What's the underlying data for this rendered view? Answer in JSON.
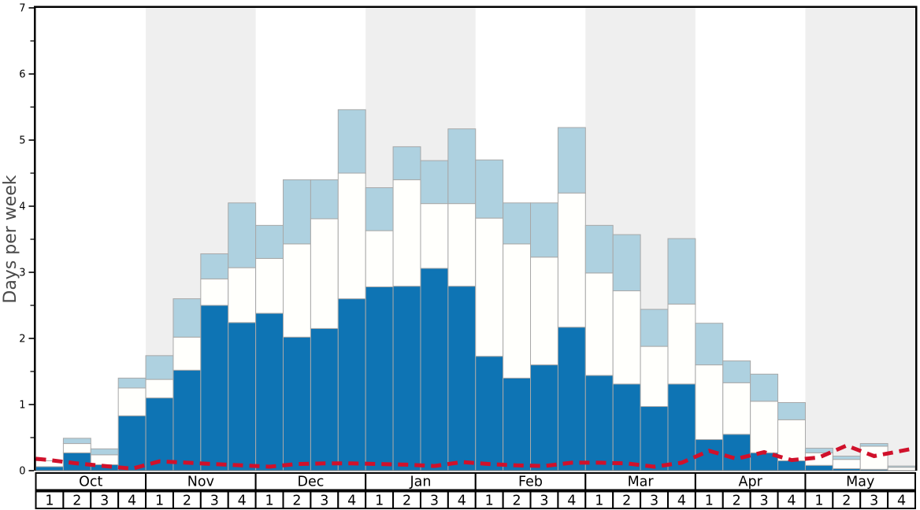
{
  "colors": {
    "dark_blue": "#0e74b4",
    "light_blue": "#aed1e0",
    "bar_white": "#fffffc",
    "bar_border": "#a8a8a8",
    "band_gray": "#efefef",
    "red_line": "#d0112b",
    "axis_black": "#000000",
    "zero_line_gray": "#8a8a8a",
    "ylabel_gray": "#4a4a4a",
    "tick_text": "#000000"
  },
  "chart_data": {
    "type": "bar",
    "stacked": true,
    "title": "",
    "ylabel": "Days per week",
    "ylim": [
      0,
      7
    ],
    "y_major_ticks": [
      "0",
      "1",
      "2",
      "3",
      "4",
      "5",
      "6",
      "7"
    ],
    "y_minor_step": 0.5,
    "grid": "off",
    "legend": "none",
    "months": [
      "Oct",
      "Nov",
      "Dec",
      "Jan",
      "Feb",
      "Mar",
      "Apr",
      "May"
    ],
    "weeks_per_month": [
      "1",
      "2",
      "3",
      "4"
    ],
    "shaded_month_indices": [
      1,
      3,
      5,
      7
    ],
    "note": "32 weekly stacked bars; values are cumulative stack tops in days-per-week, read left to right Oct week1 through May week4",
    "series": [
      {
        "name": "dark-blue-segment",
        "color_key": "dark_blue",
        "cumulative_top": [
          0.06,
          0.27,
          0.09,
          0.83,
          1.1,
          1.52,
          2.5,
          2.24,
          2.38,
          2.02,
          2.15,
          2.6,
          2.78,
          2.79,
          3.06,
          2.79,
          1.73,
          1.4,
          1.6,
          2.17,
          1.44,
          1.31,
          0.97,
          1.31,
          0.47,
          0.55,
          0.27,
          0.15,
          0.08,
          0.03,
          0.02,
          0.0
        ]
      },
      {
        "name": "white-segment",
        "color_key": "bar_white",
        "cumulative_top": [
          0.15,
          0.41,
          0.24,
          1.25,
          1.38,
          2.02,
          2.9,
          3.07,
          3.21,
          3.43,
          3.81,
          4.5,
          3.63,
          4.4,
          4.04,
          4.04,
          3.82,
          3.43,
          3.23,
          4.2,
          2.99,
          2.72,
          1.88,
          2.52,
          1.6,
          1.33,
          1.05,
          0.77,
          0.27,
          0.17,
          0.37,
          0.05
        ]
      },
      {
        "name": "light-blue-segment",
        "color_key": "light_blue",
        "cumulative_top": [
          0.15,
          0.49,
          0.33,
          1.4,
          1.74,
          2.6,
          3.28,
          4.05,
          3.71,
          4.4,
          4.4,
          5.46,
          4.28,
          4.9,
          4.69,
          5.17,
          4.7,
          4.05,
          4.05,
          5.19,
          3.71,
          3.57,
          2.44,
          3.51,
          2.23,
          1.66,
          1.46,
          1.03,
          0.34,
          0.22,
          0.41,
          0.07
        ]
      }
    ],
    "line_series": {
      "name": "red-dashed-line",
      "color_key": "red_line",
      "style": "dashed",
      "start_value": 0.18,
      "end_value": 0.34,
      "values": [
        0.16,
        0.11,
        0.07,
        0.03,
        0.14,
        0.12,
        0.1,
        0.08,
        0.06,
        0.1,
        0.11,
        0.11,
        0.1,
        0.09,
        0.07,
        0.13,
        0.1,
        0.08,
        0.07,
        0.12,
        0.12,
        0.11,
        0.06,
        0.12,
        0.3,
        0.18,
        0.28,
        0.16,
        0.2,
        0.38,
        0.22,
        0.3
      ]
    }
  }
}
